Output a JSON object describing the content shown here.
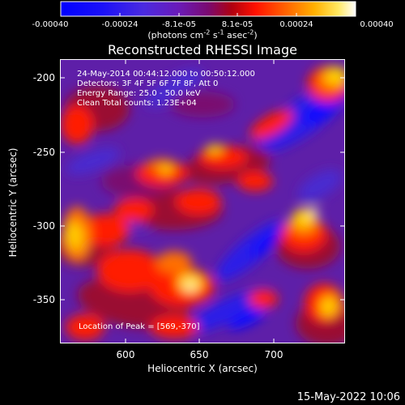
{
  "colorbar": {
    "tick_labels": [
      "-0.00040",
      "-0.00024",
      "-8.1e-05",
      "8.1e-05",
      "0.00024",
      "0.00040"
    ],
    "unit_label": "(photons cm-2 s-1 asec-2)",
    "range": [
      -0.0004,
      0.0004
    ]
  },
  "title": "Reconstructed RHESSI Image",
  "info": {
    "time_range": "24-May-2014 00:44:12.000 to 00:50:12.000",
    "detectors": "Detectors: 3F 4F 5F 6F 7F 8F, Att 0",
    "energy_range": "Energy Range: 25.0 - 50.0 keV",
    "method_counts": "Clean     Total counts: 1.23E+04"
  },
  "peak_location": "Location of Peak = [569,-370]",
  "axes": {
    "x_label": "Heliocentric X (arcsec)",
    "y_label": "Heliocentric Y (arcsec)",
    "x_ticks": [
      "600",
      "650",
      "700"
    ],
    "y_ticks": [
      "-200",
      "-250",
      "-300",
      "-350"
    ],
    "x_range": [
      560,
      748
    ],
    "y_range": [
      -384,
      -193
    ]
  },
  "timestamp": "15-May-2022 10:06",
  "colors": {
    "background": "#000000",
    "colormap": [
      "#0000ff",
      "#3a2af0",
      "#6a30c8",
      "#7a1a90",
      "#c00000",
      "#ff2000",
      "#ff8000",
      "#ffd000",
      "#ffffff"
    ]
  }
}
